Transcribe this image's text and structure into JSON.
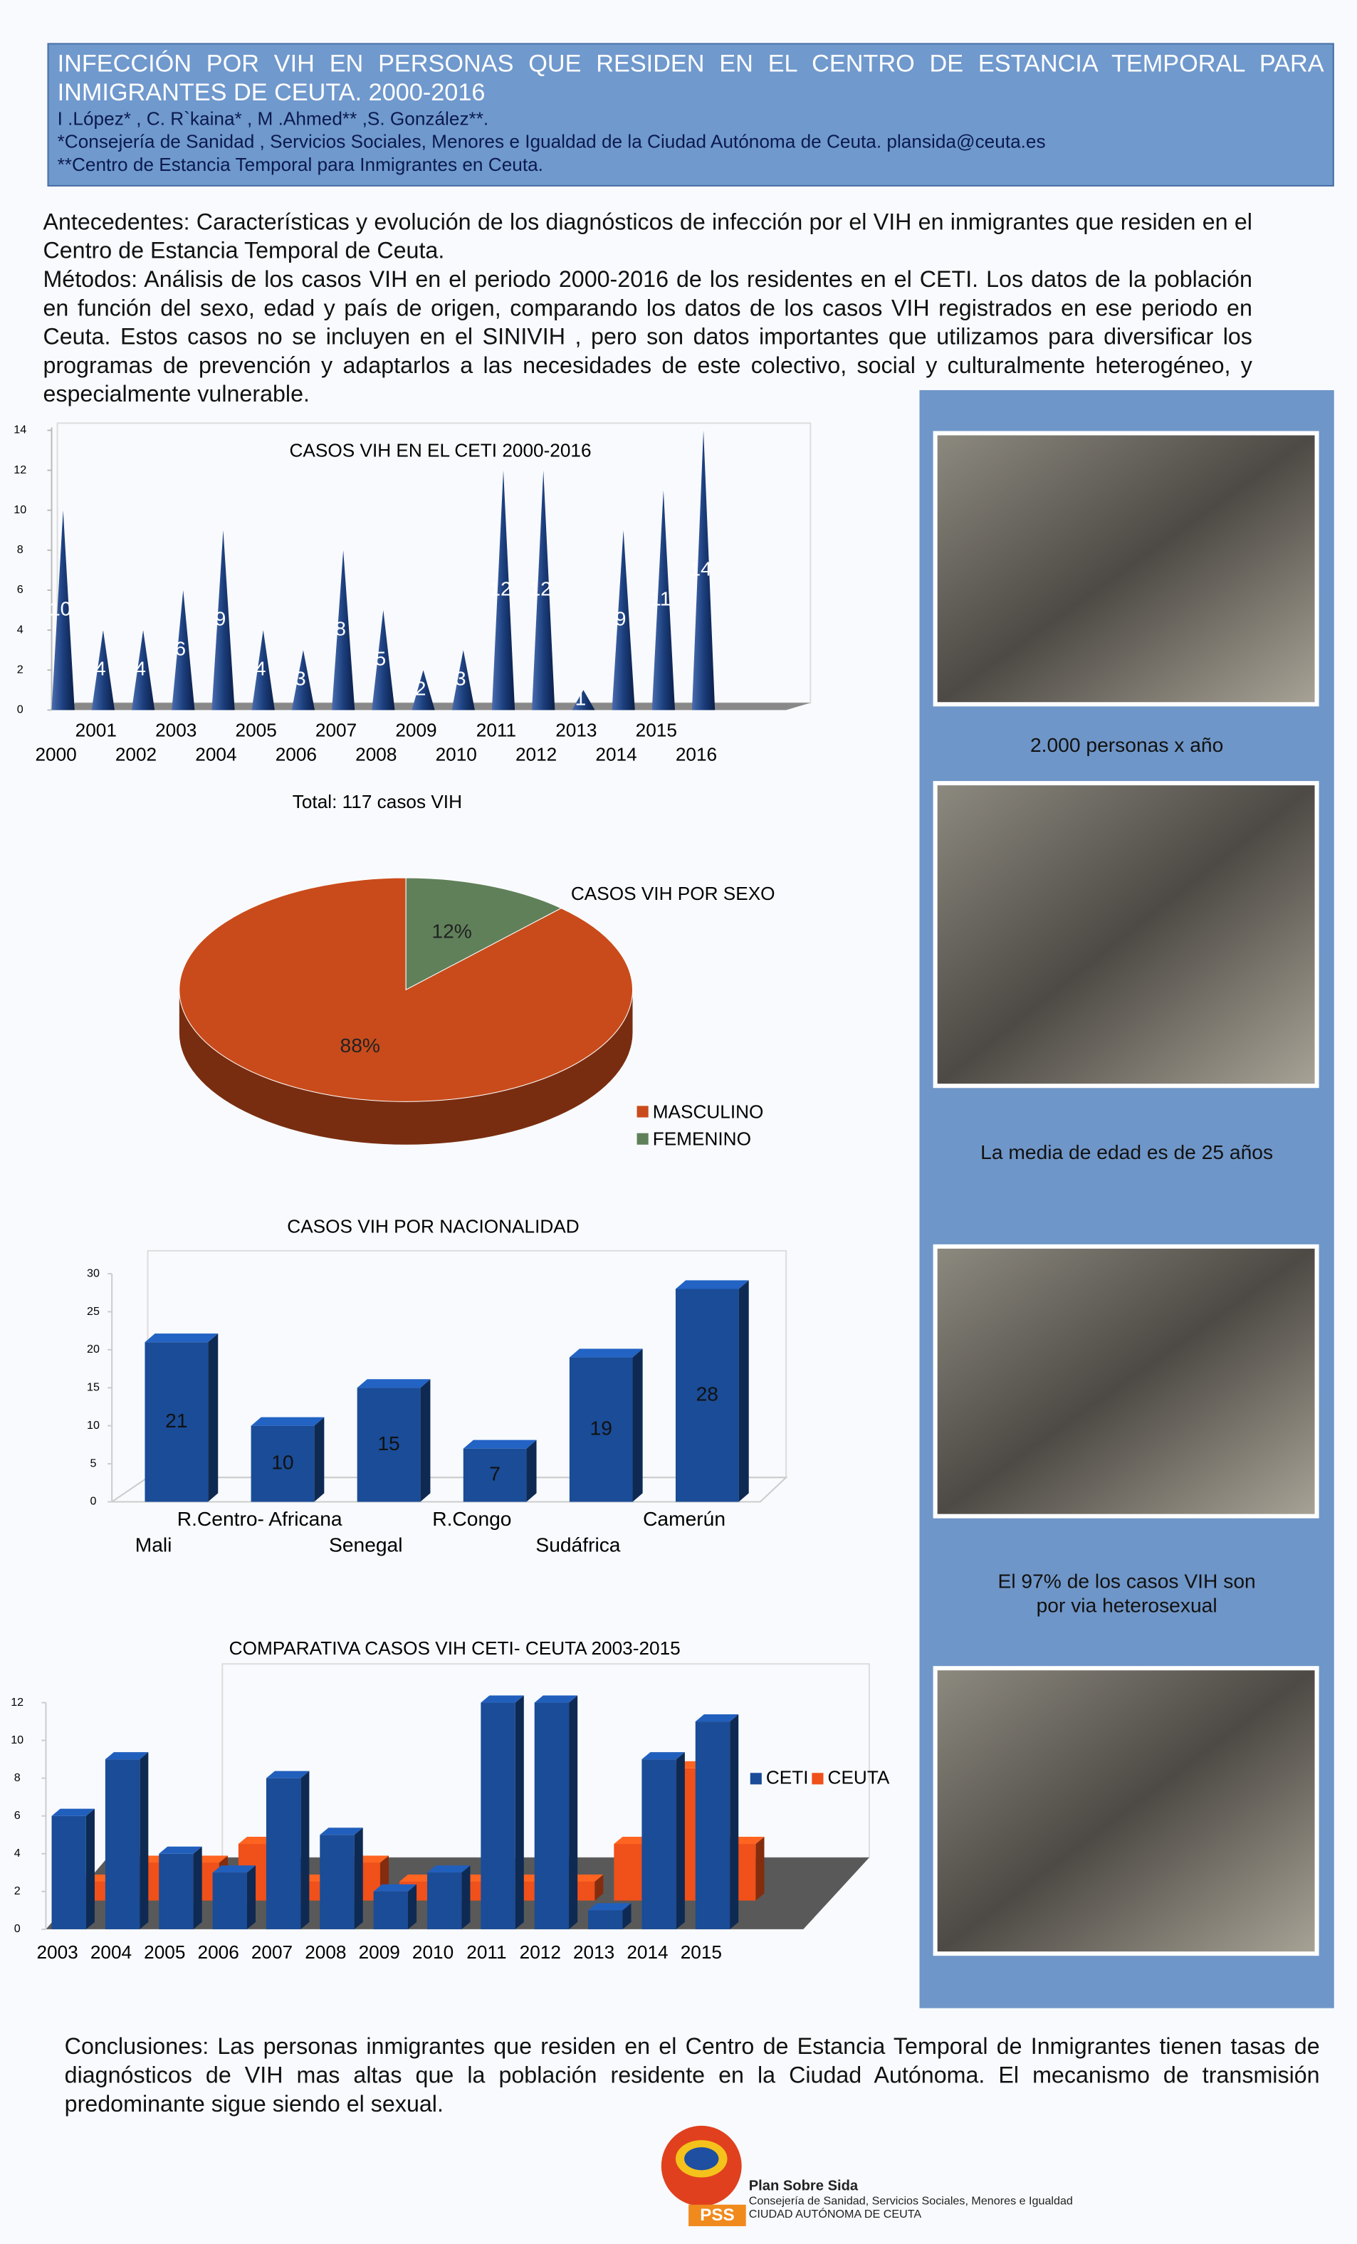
{
  "header": {
    "title": "INFECCIÓN POR VIH EN PERSONAS QUE RESIDEN EN EL CENTRO DE ESTANCIA TEMPORAL PARA INMIGRANTES DE CEUTA. 2000-2016",
    "authors": "I .López* , C. R`kaina* , M .Ahmed** ,S. González**.",
    "affiliations": [
      "*Consejería de Sanidad , Servicios Sociales, Menores e Igualdad de la Ciudad Autónoma de Ceuta.  plansida@ceuta.es",
      "**Centro de Estancia Temporal para Inmigrantes en Ceuta."
    ]
  },
  "intro": [
    "Antecedentes: Características y  evolución de los  diagnósticos de infección por el VIH en inmigrantes que residen en el Centro de Estancia Temporal de Ceuta.",
    "Métodos: Análisis de los casos VIH en el periodo 2000-2016 de los residentes en el CETI. Los datos de la población en función del sexo, edad y país de origen, comparando los datos de los casos VIH registrados en ese periodo en Ceuta. Estos casos no se incluyen en el SINIVIH , pero son datos importantes que utilizamos para diversificar los programas de prevención y adaptarlos a las necesidades de este colectivo, social y culturalmente heterogéneo, y especialmente vulnerable."
  ],
  "chart_data": [
    {
      "type": "cone",
      "title": "CASOS VIH EN EL CETI 2000-2016",
      "annotation": "Total: 117 casos VIH",
      "categories": [
        "2000",
        "2001",
        "2002",
        "2003",
        "2004",
        "2005",
        "2006",
        "2007",
        "2008",
        "2009",
        "2010",
        "2011",
        "2012",
        "2013",
        "2014",
        "2015",
        "2016"
      ],
      "values": [
        10,
        4,
        4,
        6,
        9,
        4,
        3,
        8,
        5,
        2,
        3,
        12,
        12,
        1,
        9,
        11,
        14
      ],
      "color": "#1c3f7e",
      "ylim": [
        0,
        14
      ],
      "yticks": [
        0,
        2,
        4,
        6,
        8,
        10,
        12,
        14
      ]
    },
    {
      "type": "pie",
      "title": "CASOS VIH POR SEXO",
      "categories": [
        "MASCULINO",
        "FEMENINO"
      ],
      "values": [
        88,
        12
      ],
      "value_labels": [
        "88%",
        "12%"
      ],
      "colors": [
        "#c94b1b",
        "#60805a"
      ]
    },
    {
      "type": "bar",
      "title": "CASOS VIH POR NACIONALIDAD",
      "categories": [
        "Mali",
        "R.Centro- Africana",
        "Senegal",
        "R.Congo",
        "Sudáfrica",
        "Camerún"
      ],
      "values": [
        21,
        10,
        15,
        7,
        19,
        28
      ],
      "color": "#1a4c97",
      "ylim": [
        0,
        30
      ],
      "yticks": [
        0,
        5,
        10,
        15,
        20,
        25,
        30
      ]
    },
    {
      "type": "grouped",
      "title": "COMPARATIVA CASOS VIH CETI- CEUTA 2003-2015",
      "categories": [
        "2003",
        "2004",
        "2005",
        "2006",
        "2007",
        "2008",
        "2009",
        "2010",
        "2011",
        "2012",
        "2013",
        "2014",
        "2015"
      ],
      "series": [
        {
          "name": "CETI",
          "color": "#1a4c97",
          "values": [
            6,
            9,
            4,
            3,
            8,
            5,
            2,
            3,
            12,
            12,
            1,
            9,
            11
          ]
        },
        {
          "name": "CEUTA",
          "color": "#f0501a",
          "values": [
            1,
            2,
            2,
            3,
            1,
            2,
            1,
            1,
            1,
            1,
            3,
            7,
            3
          ]
        }
      ],
      "ylim": [
        0,
        12
      ],
      "yticks": [
        0,
        2,
        4,
        6,
        8,
        10,
        12
      ],
      "legend": "right"
    }
  ],
  "captions": [
    "2.000 personas x año",
    "La media de edad es de 25 años",
    [
      "El 97% de los casos VIH son",
      "por via heterosexual"
    ]
  ],
  "conclusions": "Conclusiones: Las personas inmigrantes que residen en el Centro de Estancia Temporal de Inmigrantes tienen tasas de diagnósticos de VIH mas altas que la población residente en la Ciudad Autónoma. El mecanismo de transmisión predominante sigue siendo el sexual.",
  "logo": {
    "mark": "PSS",
    "name": "Plan Sobre Sida",
    "lines": [
      "Consejería de Sanidad, Servicios Sociales, Menores e Igualdad",
      "CIUDAD AUTÓNOMA DE CEUTA"
    ]
  }
}
